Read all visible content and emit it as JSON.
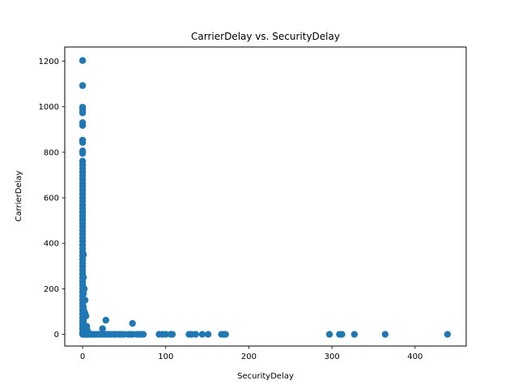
{
  "chart_data": {
    "type": "scatter",
    "title": "CarrierDelay vs. SecurityDelay",
    "xlabel": "SecurityDelay",
    "ylabel": "CarrierDelay",
    "xlim": [
      -21.5,
      461.5
    ],
    "ylim": [
      -51.5,
      1262.5
    ],
    "xticks": [
      0,
      100,
      200,
      300,
      400
    ],
    "yticks": [
      0,
      200,
      400,
      600,
      800,
      1000,
      1200
    ],
    "grid": false,
    "color": "#1f77b4",
    "points": [
      [
        0,
        1203
      ],
      [
        0,
        1093
      ],
      [
        0,
        998
      ],
      [
        0,
        985
      ],
      [
        0,
        973
      ],
      [
        0,
        930
      ],
      [
        0,
        918
      ],
      [
        0,
        853
      ],
      [
        0,
        843
      ],
      [
        0,
        806
      ],
      [
        0,
        795
      ],
      [
        0,
        761
      ],
      [
        0,
        745
      ],
      [
        0,
        729
      ],
      [
        0,
        713
      ],
      [
        0,
        697
      ],
      [
        0,
        681
      ],
      [
        0,
        665
      ],
      [
        0,
        649
      ],
      [
        0,
        633
      ],
      [
        0,
        617
      ],
      [
        0,
        601
      ],
      [
        0,
        585
      ],
      [
        0,
        569
      ],
      [
        0,
        553
      ],
      [
        0,
        537
      ],
      [
        0,
        521
      ],
      [
        0,
        505
      ],
      [
        0,
        489
      ],
      [
        0,
        473
      ],
      [
        0,
        457
      ],
      [
        0,
        441
      ],
      [
        0,
        425
      ],
      [
        0,
        409
      ],
      [
        0,
        393
      ],
      [
        0,
        377
      ],
      [
        0,
        361
      ],
      [
        0,
        345
      ],
      [
        0,
        329
      ],
      [
        0,
        313
      ],
      [
        0,
        297
      ],
      [
        0,
        281
      ],
      [
        0,
        265
      ],
      [
        0,
        249
      ],
      [
        0,
        233
      ],
      [
        0,
        217
      ],
      [
        0,
        201
      ],
      [
        0,
        185
      ],
      [
        0,
        169
      ],
      [
        0,
        153
      ],
      [
        0,
        137
      ],
      [
        0,
        121
      ],
      [
        0,
        105
      ],
      [
        0,
        89
      ],
      [
        0,
        73
      ],
      [
        0,
        57
      ],
      [
        0,
        41
      ],
      [
        0,
        25
      ],
      [
        0,
        9
      ],
      [
        0,
        0
      ],
      [
        1,
        350
      ],
      [
        1,
        250
      ],
      [
        1,
        180
      ],
      [
        1,
        120
      ],
      [
        1,
        60
      ],
      [
        1,
        0
      ],
      [
        2,
        200
      ],
      [
        2,
        100
      ],
      [
        2,
        40
      ],
      [
        2,
        0
      ],
      [
        3,
        150
      ],
      [
        3,
        90
      ],
      [
        3,
        30
      ],
      [
        3,
        0
      ],
      [
        4,
        80
      ],
      [
        4,
        20
      ],
      [
        4,
        0
      ],
      [
        5,
        35
      ],
      [
        5,
        0
      ],
      [
        6,
        15
      ],
      [
        6,
        0
      ],
      [
        8,
        0
      ],
      [
        10,
        0
      ],
      [
        12,
        0
      ],
      [
        15,
        0
      ],
      [
        18,
        0
      ],
      [
        20,
        0
      ],
      [
        22,
        0
      ],
      [
        24,
        25
      ],
      [
        25,
        0
      ],
      [
        28,
        62
      ],
      [
        28,
        0
      ],
      [
        30,
        0
      ],
      [
        32,
        0
      ],
      [
        35,
        0
      ],
      [
        38,
        0
      ],
      [
        40,
        0
      ],
      [
        44,
        0
      ],
      [
        47,
        0
      ],
      [
        50,
        0
      ],
      [
        55,
        0
      ],
      [
        58,
        0
      ],
      [
        60,
        48
      ],
      [
        60,
        0
      ],
      [
        65,
        0
      ],
      [
        67,
        0
      ],
      [
        70,
        0
      ],
      [
        73,
        0
      ],
      [
        92,
        0
      ],
      [
        96,
        0
      ],
      [
        100,
        0
      ],
      [
        106,
        0
      ],
      [
        108,
        0
      ],
      [
        128,
        0
      ],
      [
        131,
        0
      ],
      [
        136,
        0
      ],
      [
        144,
        0
      ],
      [
        151,
        0
      ],
      [
        167,
        0
      ],
      [
        170,
        0
      ],
      [
        172,
        0
      ],
      [
        297,
        0
      ],
      [
        309,
        0
      ],
      [
        312,
        0
      ],
      [
        327,
        0
      ],
      [
        364,
        0
      ],
      [
        439,
        0
      ]
    ]
  }
}
